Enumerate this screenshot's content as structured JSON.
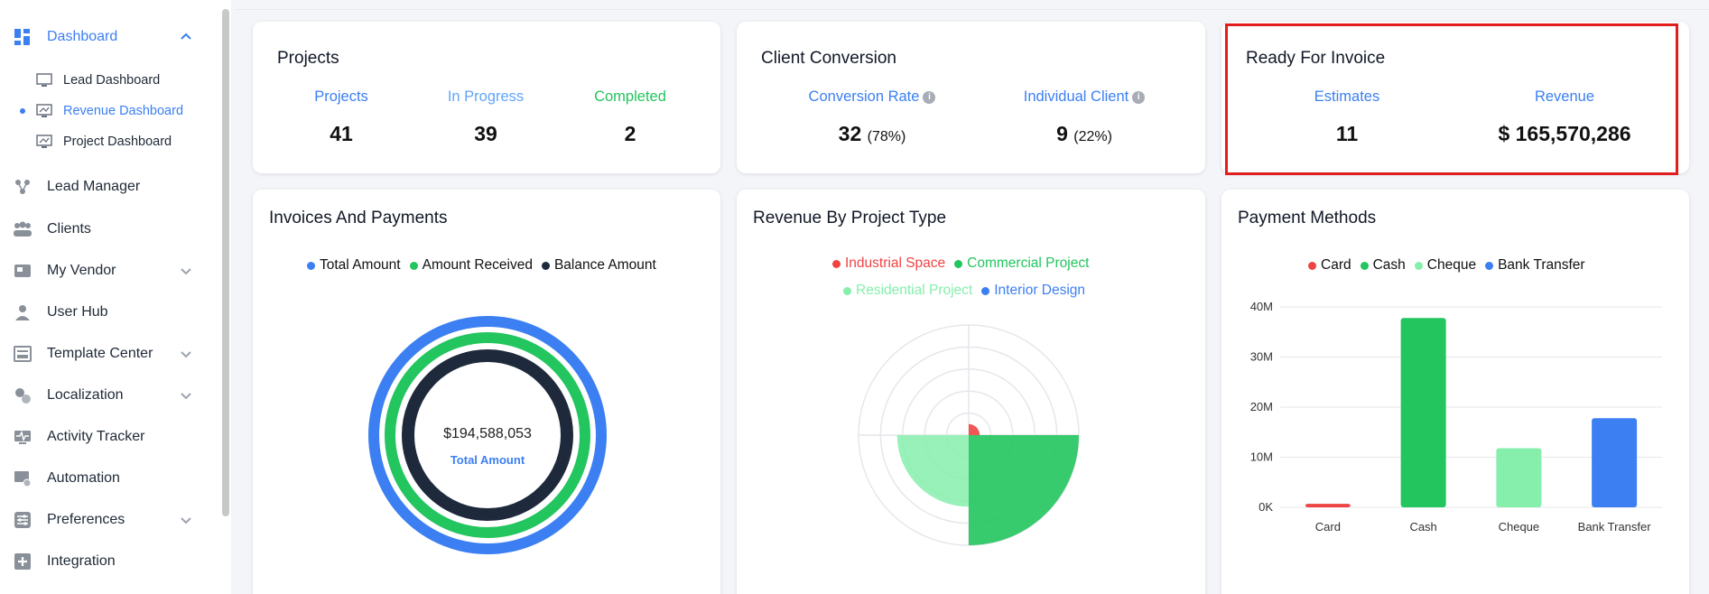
{
  "sidebar": {
    "dashboard": "Dashboard",
    "sub": [
      "Lead Dashboard",
      "Revenue Dashboard",
      "Project Dashboard"
    ],
    "items": [
      "Lead Manager",
      "Clients",
      "My Vendor",
      "User Hub",
      "Template Center",
      "Localization",
      "Activity Tracker",
      "Automation",
      "Preferences",
      "Integration"
    ]
  },
  "projects": {
    "title": "Projects",
    "labels": [
      "Projects",
      "In Progress",
      "Completed"
    ],
    "values": [
      "41",
      "39",
      "2"
    ]
  },
  "conversion": {
    "title": "Client Conversion",
    "rate_label": "Conversion Rate",
    "client_label": "Individual Client",
    "rate_value": "32",
    "rate_pct": "(78%)",
    "client_value": "9",
    "client_pct": "(22%)",
    "info_glyph": "i"
  },
  "invoice": {
    "title": "Ready For Invoice",
    "est_label": "Estimates",
    "rev_label": "Revenue",
    "est_value": "11",
    "rev_value": "$ 165,570,286"
  },
  "payments": {
    "title": "Invoices And Payments",
    "legend": [
      "Total Amount",
      "Amount Received",
      "Balance Amount"
    ],
    "center_value": "$194,588,053",
    "center_label": "Total Amount"
  },
  "revenue_type": {
    "title": "Revenue By Project Type",
    "legend": [
      "Industrial Space",
      "Commercial Project",
      "Residential Project",
      "Interior Design"
    ]
  },
  "methods": {
    "title": "Payment Methods",
    "legend": [
      "Card",
      "Cash",
      "Cheque",
      "Bank Transfer"
    ]
  },
  "colors": {
    "blue": "#3b7ff2",
    "green": "#22c55e",
    "light_green": "#86efac",
    "navy": "#1e293b",
    "red": "#ef4444",
    "highlight": "#e11d1d"
  },
  "chart_data": [
    {
      "type": "pie",
      "chart": "Invoices And Payments",
      "categories": [
        "Total Amount",
        "Amount Received",
        "Balance Amount"
      ],
      "values": [
        194588053,
        null,
        null
      ]
    },
    {
      "type": "pie",
      "chart": "Revenue By Project Type",
      "categories": [
        "Industrial Space",
        "Commercial Project",
        "Residential Project",
        "Interior Design"
      ],
      "values": [
        0.1,
        1.0,
        0.65,
        0
      ],
      "ylim": [
        0,
        1
      ]
    },
    {
      "type": "bar",
      "chart": "Payment Methods",
      "categories": [
        "Card",
        "Cash",
        "Cheque",
        "Bank Transfer"
      ],
      "values": [
        0.7,
        37.8,
        11.8,
        17.8
      ],
      "ylim": [
        0,
        40
      ],
      "yticks": [
        "0K",
        "10M",
        "20M",
        "30M",
        "40M"
      ],
      "grid": true
    }
  ]
}
